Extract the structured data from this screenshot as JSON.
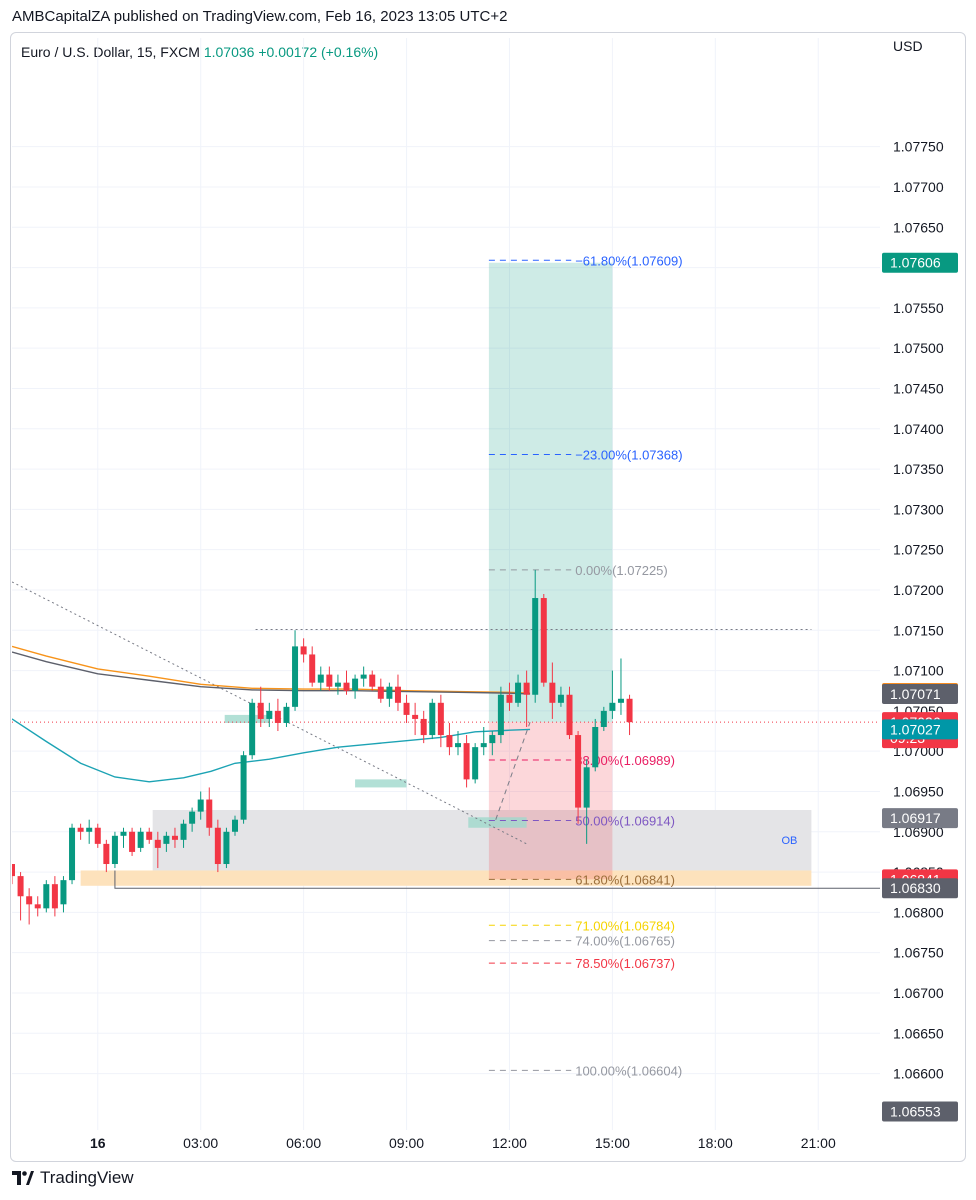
{
  "header": {
    "published": "AMBCapitalZA published on TradingView.com, Feb 16, 2023 13:05 UTC+2"
  },
  "symbol": {
    "name": "Euro / U.S. Dollar, 15, FXCM",
    "price": "1.07036",
    "change": "+0.00172 (+0.16%)"
  },
  "axis": {
    "currency": "USD"
  },
  "brand": {
    "name": "TradingView"
  },
  "colors": {
    "up": "#089981",
    "down": "#f23645",
    "ema_orange": "#f7931a",
    "sma_dark": "#5d606b",
    "ma_teal": "#1ca3b4",
    "target_zone": "#c8e8e0",
    "stop_zone": "#f2c8cc",
    "ob_zone": "#e3e3e6",
    "demand_zone": "#fde0b8"
  },
  "chart_data": {
    "type": "candlestick",
    "timeframe": "15",
    "ylim": [
      1.0653,
      1.0786
    ],
    "yticks": [
      "1.07750",
      "1.07700",
      "1.07650",
      "1.07600",
      "1.07550",
      "1.07500",
      "1.07450",
      "1.07400",
      "1.07350",
      "1.07300",
      "1.07250",
      "1.07200",
      "1.07150",
      "1.07100",
      "1.07050",
      "1.07000",
      "1.06950",
      "1.06900",
      "1.06850",
      "1.06800",
      "1.06750",
      "1.06700",
      "1.06650",
      "1.06600"
    ],
    "xrange_hours": [
      -2.5,
      22.8
    ],
    "xticks": [
      {
        "label": "16",
        "h": 0,
        "bold": true
      },
      {
        "label": "03:00",
        "h": 3
      },
      {
        "label": "06:00",
        "h": 6
      },
      {
        "label": "09:00",
        "h": 9
      },
      {
        "label": "12:00",
        "h": 12
      },
      {
        "label": "15:00",
        "h": 15
      },
      {
        "label": "18:00",
        "h": 18
      },
      {
        "label": "21:00",
        "h": 21
      }
    ],
    "candles_start_hour": -2.5,
    "candles": [
      [
        1.0686,
        1.0686,
        1.06835,
        1.06845
      ],
      [
        1.06845,
        1.0685,
        1.0679,
        1.0682
      ],
      [
        1.0682,
        1.0683,
        1.06785,
        1.0681
      ],
      [
        1.0681,
        1.0682,
        1.06795,
        1.06805
      ],
      [
        1.06805,
        1.0684,
        1.068,
        1.06835
      ],
      [
        1.06835,
        1.06845,
        1.06795,
        1.06805
      ],
      [
        1.0681,
        1.06845,
        1.068,
        1.0684
      ],
      [
        1.0684,
        1.0691,
        1.06835,
        1.06905
      ],
      [
        1.06905,
        1.0691,
        1.0689,
        1.069
      ],
      [
        1.069,
        1.06915,
        1.06885,
        1.06905
      ],
      [
        1.06905,
        1.0691,
        1.0688,
        1.06885
      ],
      [
        1.06885,
        1.0689,
        1.0685,
        1.0686
      ],
      [
        1.0686,
        1.069,
        1.06855,
        1.06895
      ],
      [
        1.06895,
        1.06905,
        1.0688,
        1.069
      ],
      [
        1.069,
        1.06905,
        1.0687,
        1.06875
      ],
      [
        1.0688,
        1.06905,
        1.06875,
        1.069
      ],
      [
        1.069,
        1.06905,
        1.06885,
        1.0689
      ],
      [
        1.0689,
        1.069,
        1.06855,
        1.0688
      ],
      [
        1.06885,
        1.069,
        1.06875,
        1.06895
      ],
      [
        1.06895,
        1.06905,
        1.0688,
        1.0689
      ],
      [
        1.0689,
        1.06915,
        1.0688,
        1.0691
      ],
      [
        1.0691,
        1.0693,
        1.069,
        1.06925
      ],
      [
        1.06925,
        1.0695,
        1.06915,
        1.0694
      ],
      [
        1.0694,
        1.06955,
        1.06895,
        1.06905
      ],
      [
        1.06905,
        1.06915,
        1.0685,
        1.0686
      ],
      [
        1.0686,
        1.06905,
        1.06855,
        1.069
      ],
      [
        1.069,
        1.0692,
        1.06895,
        1.06915
      ],
      [
        1.06915,
        1.07,
        1.0691,
        1.06995
      ],
      [
        1.06995,
        1.07065,
        1.0699,
        1.0706
      ],
      [
        1.0706,
        1.0708,
        1.0703,
        1.0704
      ],
      [
        1.0704,
        1.0706,
        1.0703,
        1.0705
      ],
      [
        1.0705,
        1.07065,
        1.07025,
        1.07035
      ],
      [
        1.07035,
        1.0706,
        1.0703,
        1.07055
      ],
      [
        1.07055,
        1.0715,
        1.0705,
        1.0713
      ],
      [
        1.0713,
        1.0714,
        1.0711,
        1.0712
      ],
      [
        1.0712,
        1.0713,
        1.0708,
        1.07085
      ],
      [
        1.07085,
        1.07105,
        1.07075,
        1.07095
      ],
      [
        1.07095,
        1.07105,
        1.07075,
        1.0708
      ],
      [
        1.0708,
        1.07095,
        1.0707,
        1.07085
      ],
      [
        1.07085,
        1.071,
        1.0707,
        1.07075
      ],
      [
        1.07075,
        1.07095,
        1.07065,
        1.0709
      ],
      [
        1.0709,
        1.07105,
        1.0708,
        1.07095
      ],
      [
        1.07095,
        1.071,
        1.07075,
        1.0708
      ],
      [
        1.0708,
        1.0709,
        1.0706,
        1.07065
      ],
      [
        1.07065,
        1.07085,
        1.07055,
        1.0708
      ],
      [
        1.0708,
        1.07095,
        1.0705,
        1.0706
      ],
      [
        1.0706,
        1.0707,
        1.07035,
        1.07045
      ],
      [
        1.07045,
        1.0706,
        1.0702,
        1.0704
      ],
      [
        1.0704,
        1.0705,
        1.0701,
        1.0702
      ],
      [
        1.0702,
        1.07065,
        1.07015,
        1.0706
      ],
      [
        1.0706,
        1.0707,
        1.07005,
        1.0702
      ],
      [
        1.0702,
        1.07035,
        1.06995,
        1.07005
      ],
      [
        1.07005,
        1.07025,
        1.06995,
        1.0701
      ],
      [
        1.0701,
        1.0702,
        1.06955,
        1.06965
      ],
      [
        1.06965,
        1.0701,
        1.0696,
        1.07005
      ],
      [
        1.07005,
        1.0703,
        1.06995,
        1.0701
      ],
      [
        1.0701,
        1.07025,
        1.06995,
        1.0702
      ],
      [
        1.0702,
        1.0708,
        1.0701,
        1.0707
      ],
      [
        1.0707,
        1.07085,
        1.0705,
        1.0706
      ],
      [
        1.0706,
        1.07095,
        1.07055,
        1.07085
      ],
      [
        1.07085,
        1.071,
        1.0703,
        1.0707
      ],
      [
        1.0707,
        1.07225,
        1.0706,
        1.0719
      ],
      [
        1.0719,
        1.07195,
        1.0708,
        1.07085
      ],
      [
        1.07085,
        1.0711,
        1.0704,
        1.0706
      ],
      [
        1.0706,
        1.0708,
        1.07055,
        1.0707
      ],
      [
        1.0707,
        1.0708,
        1.07015,
        1.0702
      ],
      [
        1.0702,
        1.07025,
        1.0691,
        1.0693
      ],
      [
        1.0693,
        1.0699,
        1.06885,
        1.0698
      ],
      [
        1.0698,
        1.0704,
        1.06975,
        1.0703
      ],
      [
        1.0703,
        1.07055,
        1.07025,
        1.0705
      ],
      [
        1.0705,
        1.071,
        1.0704,
        1.0706
      ],
      [
        1.0706,
        1.07115,
        1.07045,
        1.07065
      ],
      [
        1.07065,
        1.0707,
        1.0702,
        1.07036
      ]
    ],
    "series": [
      {
        "name": "",
        "color": "#f7931a",
        "points": [
          [
            -2.5,
            1.0713
          ],
          [
            -1.5,
            1.07118
          ],
          [
            0,
            1.07102
          ],
          [
            1.5,
            1.07093
          ],
          [
            3,
            1.07083
          ],
          [
            4.5,
            1.07078
          ],
          [
            6,
            1.07077
          ],
          [
            7.5,
            1.07077
          ],
          [
            9,
            1.07075
          ],
          [
            10.5,
            1.07074
          ],
          [
            12,
            1.07073
          ],
          [
            12.6,
            1.07072
          ]
        ]
      },
      {
        "name": "",
        "color": "#5d606b",
        "points": [
          [
            -2.5,
            1.07123
          ],
          [
            -1.5,
            1.07111
          ],
          [
            0,
            1.07096
          ],
          [
            1.5,
            1.07088
          ],
          [
            3,
            1.0708
          ],
          [
            4.5,
            1.07076
          ],
          [
            6,
            1.07075
          ],
          [
            7.5,
            1.07075
          ],
          [
            9,
            1.07074
          ],
          [
            10.5,
            1.07073
          ],
          [
            12,
            1.07072
          ],
          [
            12.6,
            1.07071
          ]
        ]
      },
      {
        "name": "",
        "color": "#1ca3b4",
        "points": [
          [
            -2.5,
            1.0704
          ],
          [
            -1.5,
            1.07012
          ],
          [
            -0.5,
            1.06985
          ],
          [
            0.5,
            1.06968
          ],
          [
            1.5,
            1.06962
          ],
          [
            2.5,
            1.06967
          ],
          [
            3.3,
            1.06975
          ],
          [
            4,
            1.06985
          ],
          [
            5,
            1.0699
          ],
          [
            6,
            1.06998
          ],
          [
            7,
            1.07005
          ],
          [
            8,
            1.07009
          ],
          [
            9,
            1.07013
          ],
          [
            10,
            1.07017
          ],
          [
            11,
            1.07024
          ],
          [
            12,
            1.07026
          ],
          [
            12.6,
            1.07027
          ]
        ]
      }
    ],
    "position": {
      "start_h": 11.4,
      "end_h": 15.0,
      "entry": 1.07036,
      "target": 1.07606,
      "stop": 1.06841
    },
    "fib_levels": [
      {
        "label": "−61.80%(1.07609)",
        "value": 1.07609,
        "color": "#2962ff"
      },
      {
        "label": "−23.00%(1.07368)",
        "value": 1.07368,
        "color": "#2962ff"
      },
      {
        "label": "0.00%(1.07225)",
        "value": 1.07225,
        "color": "#9598a1"
      },
      {
        "label": "38.00%(1.06989)",
        "value": 1.06989,
        "color": "#e91e63"
      },
      {
        "label": "50.00%(1.06914)",
        "value": 1.06914,
        "color": "#7e57c2"
      },
      {
        "label": "61.80%(1.06841)",
        "value": 1.06841,
        "color": "#9c6f3b"
      },
      {
        "label": "71.00%(1.06784)",
        "value": 1.06784,
        "color": "#f5d300"
      },
      {
        "label": "74.00%(1.06765)",
        "value": 1.06765,
        "color": "#9598a1"
      },
      {
        "label": "78.50%(1.06737)",
        "value": 1.06737,
        "color": "#f23645"
      },
      {
        "label": "100.00%(1.06604)",
        "value": 1.06604,
        "color": "#9598a1"
      }
    ],
    "fib_range_h": [
      11.4,
      13.8
    ],
    "zones": [
      {
        "name": "ob",
        "label": "OB",
        "start_h": 1.6,
        "end_h": 20.8,
        "top": 1.06927,
        "bottom": 1.06852,
        "color": "#e3e3e6"
      },
      {
        "name": "demand",
        "label": "",
        "start_h": -0.5,
        "end_h": 20.8,
        "top": 1.06852,
        "bottom": 1.06833,
        "color": "#fde0b8"
      }
    ],
    "small_boxes": [
      {
        "start_h": 3.7,
        "end_h": 5.0,
        "top": 1.07045,
        "bottom": 1.07035
      },
      {
        "start_h": 7.5,
        "end_h": 9.0,
        "top": 1.06965,
        "bottom": 1.06955
      },
      {
        "start_h": 10.8,
        "end_h": 12.5,
        "top": 1.06918,
        "bottom": 1.06905
      }
    ],
    "trendline": {
      "from": [
        -2.5,
        1.0721
      ],
      "to": [
        12.5,
        1.06885
      ]
    },
    "high_line": {
      "from_h": 4.6,
      "to_h": 20.8,
      "value": 1.07151
    },
    "low_line": {
      "from_h": 0.5,
      "to_h": 22.8,
      "value": 1.0683
    },
    "entry_arrow": {
      "from": [
        11.6,
        1.06915
      ],
      "to": [
        12.6,
        1.07036
      ]
    },
    "price_labels": [
      {
        "text": "1.07606",
        "value": 1.07606,
        "bg": "#089981",
        "fg": "#ffffff"
      },
      {
        "text": "1.07072",
        "value": 1.07072,
        "bg": "#f57c00",
        "fg": "#ffffff"
      },
      {
        "text": "1.07071",
        "value": 1.07071,
        "bg": "#5d606b",
        "fg": "#ffffff"
      },
      {
        "text": "1.07036",
        "value": 1.07036,
        "bg": "#f23645",
        "fg": "#ffffff",
        "sub": "09:23"
      },
      {
        "text": "1.07027",
        "value": 1.07027,
        "bg": "#0097a7",
        "fg": "#ffffff"
      },
      {
        "text": "1.06917",
        "value": 1.06917,
        "bg": "#787b86",
        "fg": "#ffffff"
      },
      {
        "text": "1.06841",
        "value": 1.06841,
        "bg": "#f23645",
        "fg": "#ffffff"
      },
      {
        "text": "1.06830",
        "value": 1.0683,
        "bg": "#5d606b",
        "fg": "#ffffff"
      },
      {
        "text": "1.06553",
        "value": 1.06553,
        "bg": "#5d606b",
        "fg": "#ffffff"
      }
    ]
  }
}
